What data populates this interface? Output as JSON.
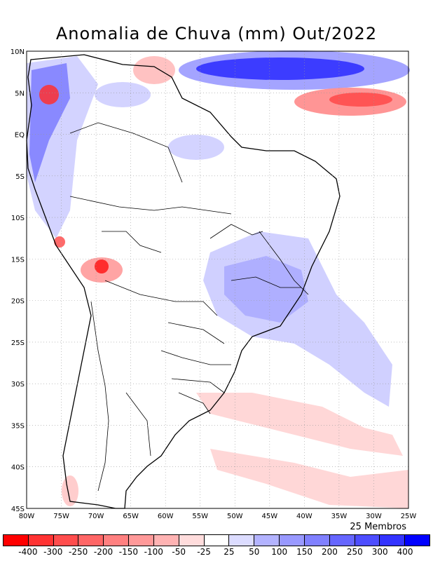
{
  "title": "Anomalia de Chuva (mm) Out/2022",
  "members_label": "25 Membros",
  "chart_data": {
    "type": "map-contour",
    "variable": "Precipitation anomaly",
    "units": "mm",
    "period": "Out/2022",
    "x_ticks": [
      "80W",
      "75W",
      "70W",
      "65W",
      "60W",
      "55W",
      "50W",
      "45W",
      "40W",
      "35W",
      "30W",
      "25W"
    ],
    "y_ticks": [
      "10N",
      "5N",
      "EQ",
      "5S",
      "10S",
      "15S",
      "20S",
      "25S",
      "30S",
      "35S",
      "40S",
      "45S"
    ],
    "xlim": [
      -80,
      -25
    ],
    "ylim": [
      -45,
      10
    ],
    "colorbar": {
      "labels": [
        "-400",
        "-300",
        "-250",
        "-200",
        "-150",
        "-100",
        "-50",
        "-25",
        "25",
        "50",
        "100",
        "150",
        "200",
        "250",
        "300",
        "400"
      ],
      "colors": [
        "#ff0000",
        "#ff3333",
        "#ff4d4d",
        "#ff6666",
        "#ff8080",
        "#ff9999",
        "#ffb3b3",
        "#ffdcdc",
        "#ffffff",
        "#dcdcff",
        "#b3b3ff",
        "#9999ff",
        "#8080ff",
        "#6666ff",
        "#4d4dff",
        "#3333ff",
        "#0000ff"
      ]
    }
  }
}
